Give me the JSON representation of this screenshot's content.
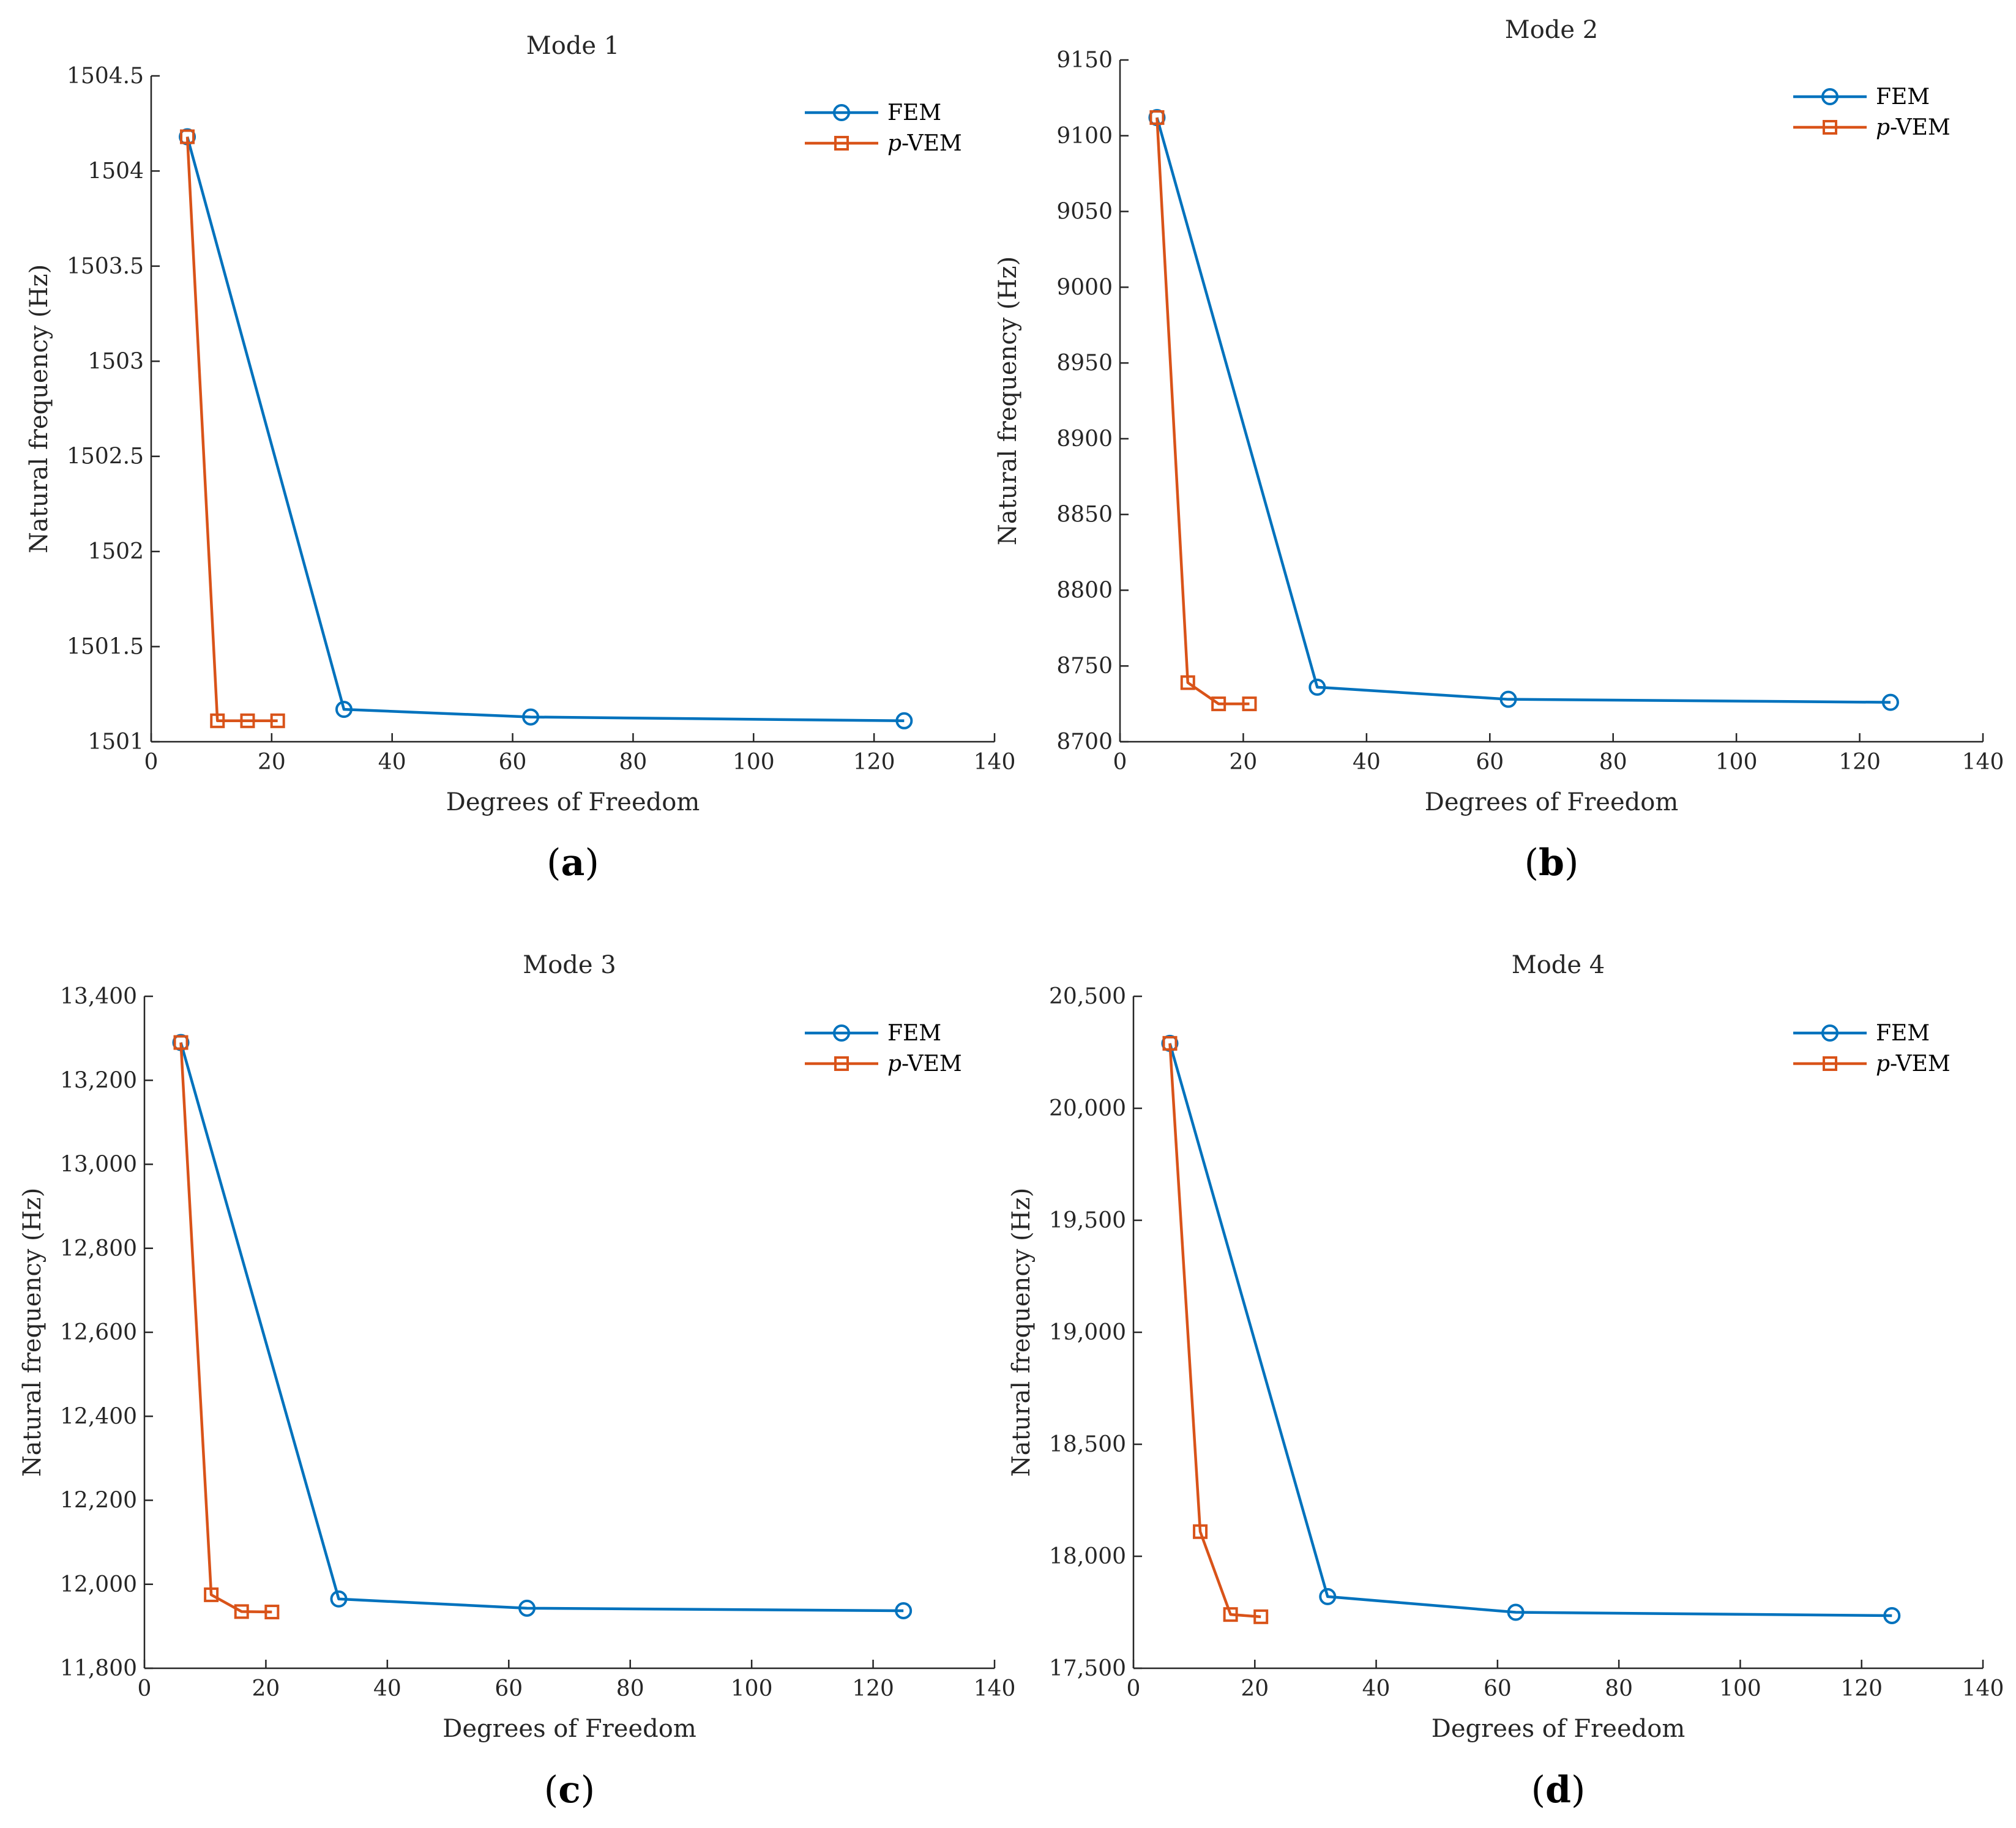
{
  "figure_labels": [
    "(a)",
    "(b)",
    "(c)",
    "(d)"
  ],
  "chart_data": [
    {
      "type": "line",
      "panel": "a",
      "title": "Mode 1",
      "xlabel": "Degrees of Freedom",
      "ylabel": "Natural frequency (Hz)",
      "xlim": [
        0,
        140
      ],
      "ylim": [
        1501,
        1504.5
      ],
      "xticks": [
        0,
        20,
        40,
        60,
        80,
        100,
        120,
        140
      ],
      "yticks": [
        1501,
        1501.5,
        1502,
        1502.5,
        1503,
        1503.5,
        1504,
        1504.5
      ],
      "ytick_labels": [
        "1501",
        "1501.5",
        "1502",
        "1502.5",
        "1503",
        "1503.5",
        "1504",
        "1504.5"
      ],
      "legend_position": "top-right",
      "series": [
        {
          "name": "FEM",
          "marker": "circle",
          "color": "#0072BD",
          "x": [
            6,
            32,
            63,
            125
          ],
          "y": [
            1504.18,
            1501.17,
            1501.13,
            1501.11
          ]
        },
        {
          "name": "p-VEM",
          "marker": "square",
          "color": "#D95319",
          "x": [
            6,
            11,
            16,
            21
          ],
          "y": [
            1504.18,
            1501.11,
            1501.11,
            1501.11
          ]
        }
      ]
    },
    {
      "type": "line",
      "panel": "b",
      "title": "Mode 2",
      "xlabel": "Degrees of Freedom",
      "ylabel": "Natural frequency (Hz)",
      "xlim": [
        0,
        140
      ],
      "ylim": [
        8700,
        9150
      ],
      "xticks": [
        0,
        20,
        40,
        60,
        80,
        100,
        120,
        140
      ],
      "yticks": [
        8700,
        8750,
        8800,
        8850,
        8900,
        8950,
        9000,
        9050,
        9100,
        9150
      ],
      "ytick_labels": [
        "8700",
        "8750",
        "8800",
        "8850",
        "8900",
        "8950",
        "9000",
        "9050",
        "9100",
        "9150"
      ],
      "legend_position": "top-right",
      "series": [
        {
          "name": "FEM",
          "marker": "circle",
          "color": "#0072BD",
          "x": [
            6,
            32,
            63,
            125
          ],
          "y": [
            9112,
            8736,
            8728,
            8726
          ]
        },
        {
          "name": "p-VEM",
          "marker": "square",
          "color": "#D95319",
          "x": [
            6,
            11,
            16,
            21
          ],
          "y": [
            9112,
            8739,
            8725,
            8725
          ]
        }
      ]
    },
    {
      "type": "line",
      "panel": "c",
      "title": "Mode 3",
      "xlabel": "Degrees of Freedom",
      "ylabel": "Natural frequency (Hz)",
      "xlim": [
        0,
        140
      ],
      "ylim": [
        11800,
        13400
      ],
      "xticks": [
        0,
        20,
        40,
        60,
        80,
        100,
        120,
        140
      ],
      "yticks": [
        11800,
        12000,
        12200,
        12400,
        12600,
        12800,
        13000,
        13200,
        13400
      ],
      "ytick_labels": [
        "11,800",
        "12,000",
        "12,200",
        "12,400",
        "12,600",
        "12,800",
        "13,000",
        "13,200",
        "13,400"
      ],
      "legend_position": "top-right",
      "series": [
        {
          "name": "FEM",
          "marker": "circle",
          "color": "#0072BD",
          "x": [
            6,
            32,
            63,
            125
          ],
          "y": [
            13290,
            11965,
            11943,
            11937
          ]
        },
        {
          "name": "p-VEM",
          "marker": "square",
          "color": "#D95319",
          "x": [
            6,
            11,
            16,
            21
          ],
          "y": [
            13290,
            11975,
            11935,
            11934
          ]
        }
      ]
    },
    {
      "type": "line",
      "panel": "d",
      "title": "Mode 4",
      "xlabel": "Degrees of Freedom",
      "ylabel": "Natural frequency (Hz)",
      "xlim": [
        0,
        140
      ],
      "ylim": [
        17500,
        20500
      ],
      "xticks": [
        0,
        20,
        40,
        60,
        80,
        100,
        120,
        140
      ],
      "yticks": [
        17500,
        18000,
        18500,
        19000,
        19500,
        20000,
        20500
      ],
      "ytick_labels": [
        "17,500",
        "18,000",
        "18,500",
        "19,000",
        "19,500",
        "20,000",
        "20,500"
      ],
      "legend_position": "top-right",
      "series": [
        {
          "name": "FEM",
          "marker": "circle",
          "color": "#0072BD",
          "x": [
            6,
            32,
            63,
            125
          ],
          "y": [
            20290,
            17820,
            17750,
            17735
          ]
        },
        {
          "name": "p-VEM",
          "marker": "square",
          "color": "#D95319",
          "x": [
            6,
            11,
            16,
            21
          ],
          "y": [
            20290,
            18110,
            17740,
            17730
          ]
        }
      ]
    }
  ]
}
